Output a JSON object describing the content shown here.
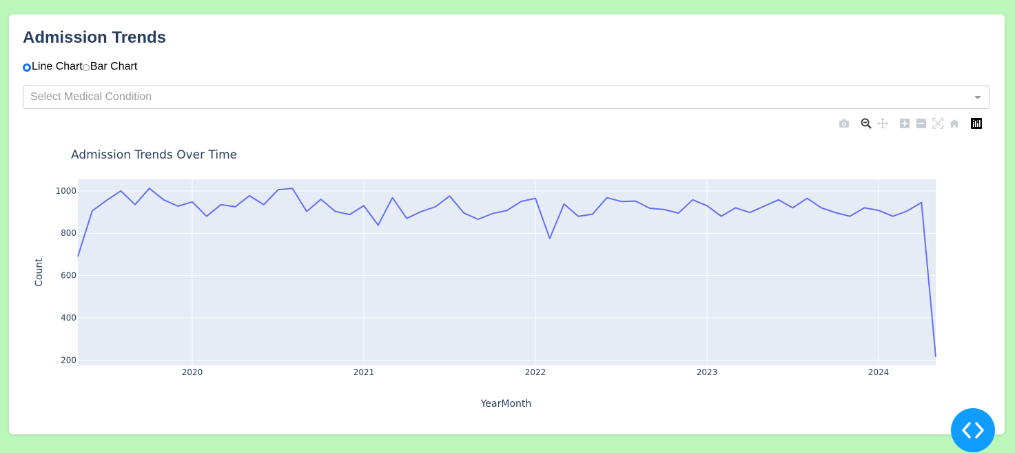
{
  "page": {
    "title": "Admission Trends"
  },
  "chart_type_options": [
    {
      "label": "Line Chart",
      "selected": true
    },
    {
      "label": "Bar Chart",
      "selected": false
    }
  ],
  "condition_select": {
    "placeholder": "Select Medical Condition"
  },
  "modebar": {
    "icons": [
      "camera-icon",
      "zoom-icon",
      "pan-icon",
      "zoom-in-icon",
      "zoom-out-icon",
      "autoscale-icon",
      "reset-axes-icon",
      "plotly-logo-icon"
    ]
  },
  "fab": {
    "icon": "code-icon",
    "color": "#119dff"
  },
  "colors": {
    "background": "#bbf7bb",
    "plot_bg": "#e5ecf6",
    "line": "#636efa",
    "title": "#2a3f5f"
  },
  "chart_data": {
    "type": "line",
    "title": "Admission Trends Over Time",
    "xlabel": "YearMonth",
    "ylabel": "Count",
    "x_ticks": [
      "2020",
      "2021",
      "2022",
      "2023",
      "2024"
    ],
    "y_ticks": [
      200,
      400,
      600,
      800,
      1000
    ],
    "xlim": [
      "2019-05",
      "2024-05"
    ],
    "ylim": [
      175,
      1055
    ],
    "grid": true,
    "series": [
      {
        "x": [
          "2019-05",
          "2019-06",
          "2019-07",
          "2019-08",
          "2019-09",
          "2019-10",
          "2019-11",
          "2019-12",
          "2020-01",
          "2020-02",
          "2020-03",
          "2020-04",
          "2020-05",
          "2020-06",
          "2020-07",
          "2020-08",
          "2020-09",
          "2020-10",
          "2020-11",
          "2020-12",
          "2021-01",
          "2021-02",
          "2021-03",
          "2021-04",
          "2021-05",
          "2021-06",
          "2021-07",
          "2021-08",
          "2021-09",
          "2021-10",
          "2021-11",
          "2021-12",
          "2022-01",
          "2022-02",
          "2022-03",
          "2022-04",
          "2022-05",
          "2022-06",
          "2022-07",
          "2022-08",
          "2022-09",
          "2022-10",
          "2022-11",
          "2022-12",
          "2023-01",
          "2023-02",
          "2023-03",
          "2023-04",
          "2023-05",
          "2023-06",
          "2023-07",
          "2023-08",
          "2023-09",
          "2023-10",
          "2023-11",
          "2023-12",
          "2024-01",
          "2024-02",
          "2024-03",
          "2024-04",
          "2024-05"
        ],
        "y": [
          690,
          905,
          955,
          1000,
          935,
          1012,
          958,
          928,
          948,
          880,
          935,
          925,
          977,
          935,
          1005,
          1012,
          903,
          960,
          903,
          888,
          930,
          838,
          968,
          870,
          902,
          925,
          976,
          895,
          866,
          893,
          907,
          950,
          965,
          775,
          938,
          880,
          890,
          968,
          950,
          952,
          918,
          912,
          895,
          958,
          930,
          880,
          920,
          898,
          928,
          958,
          920,
          965,
          920,
          897,
          880,
          920,
          908,
          880,
          905,
          945,
          215
        ]
      }
    ]
  }
}
